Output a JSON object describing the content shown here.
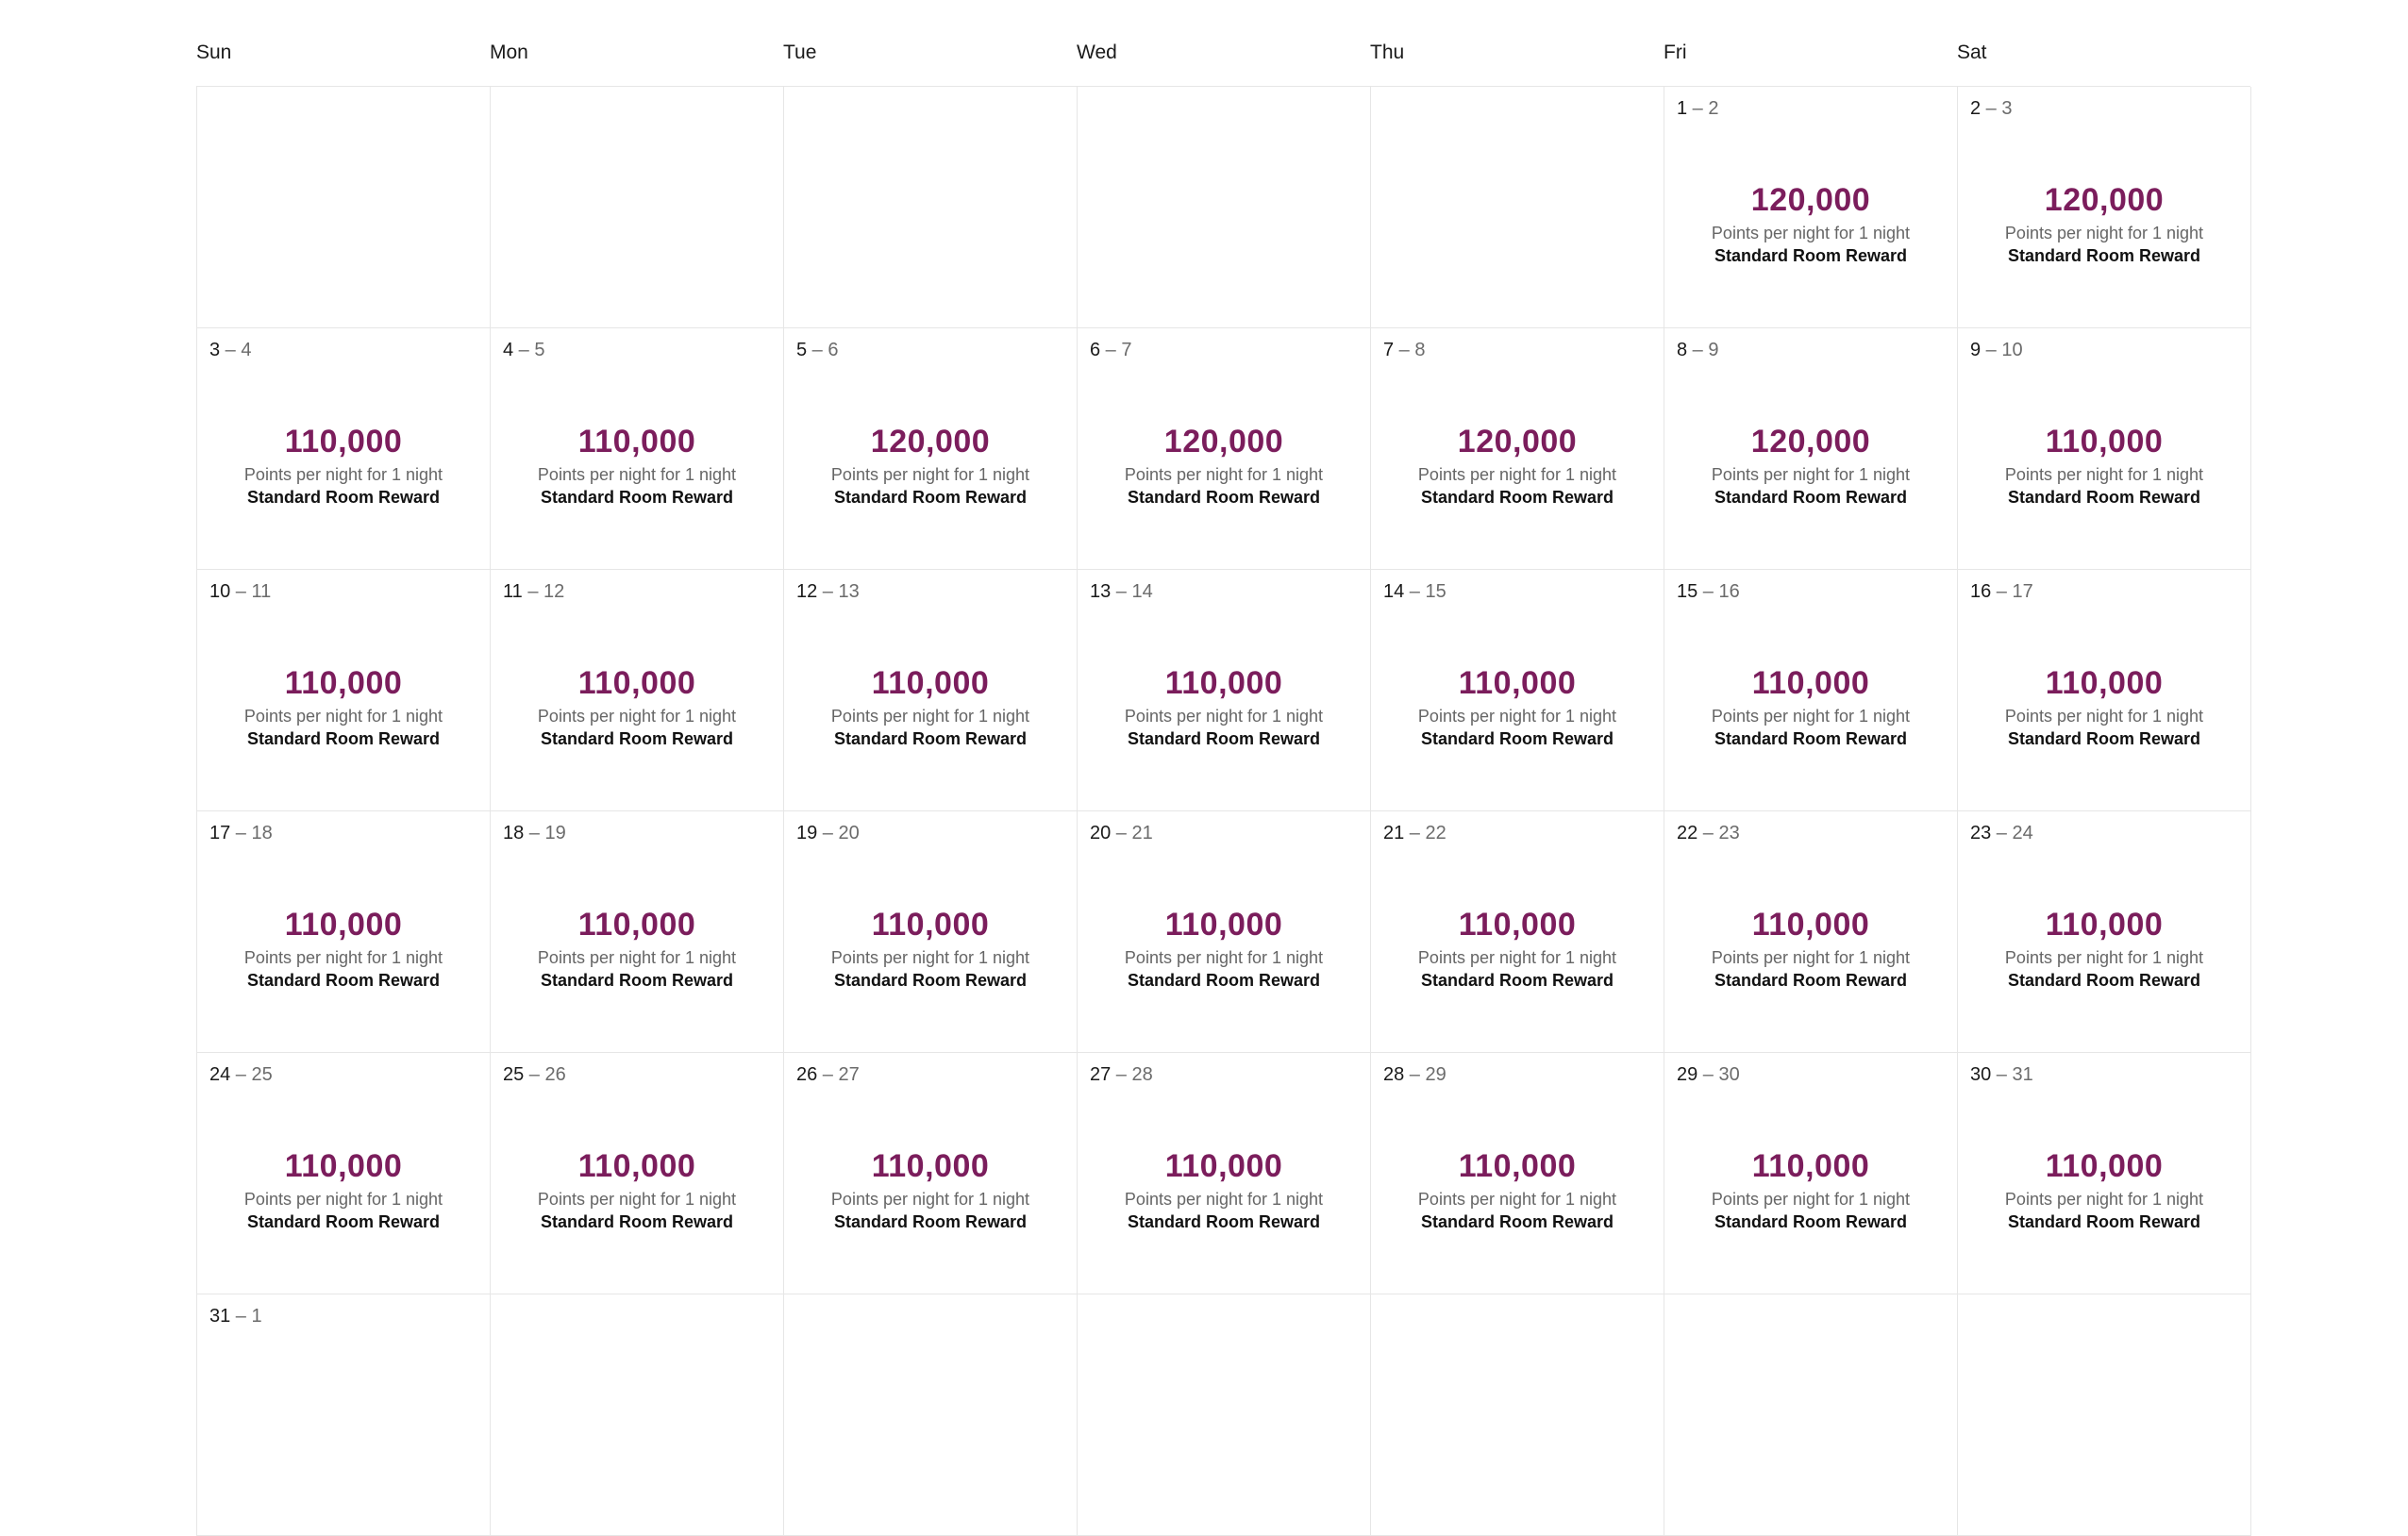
{
  "calendar": {
    "weekdays": [
      "Sun",
      "Mon",
      "Tue",
      "Wed",
      "Thu",
      "Fri",
      "Sat"
    ],
    "caption": "Points per night for 1 night",
    "reward_type": "Standard Room Reward",
    "weeks": [
      [
        null,
        null,
        null,
        null,
        null,
        {
          "start": "1",
          "end": "2",
          "points": "120,000"
        },
        {
          "start": "2",
          "end": "3",
          "points": "120,000"
        }
      ],
      [
        {
          "start": "3",
          "end": "4",
          "points": "110,000"
        },
        {
          "start": "4",
          "end": "5",
          "points": "110,000"
        },
        {
          "start": "5",
          "end": "6",
          "points": "120,000"
        },
        {
          "start": "6",
          "end": "7",
          "points": "120,000"
        },
        {
          "start": "7",
          "end": "8",
          "points": "120,000"
        },
        {
          "start": "8",
          "end": "9",
          "points": "120,000"
        },
        {
          "start": "9",
          "end": "10",
          "points": "110,000"
        }
      ],
      [
        {
          "start": "10",
          "end": "11",
          "points": "110,000"
        },
        {
          "start": "11",
          "end": "12",
          "points": "110,000"
        },
        {
          "start": "12",
          "end": "13",
          "points": "110,000"
        },
        {
          "start": "13",
          "end": "14",
          "points": "110,000"
        },
        {
          "start": "14",
          "end": "15",
          "points": "110,000"
        },
        {
          "start": "15",
          "end": "16",
          "points": "110,000"
        },
        {
          "start": "16",
          "end": "17",
          "points": "110,000"
        }
      ],
      [
        {
          "start": "17",
          "end": "18",
          "points": "110,000"
        },
        {
          "start": "18",
          "end": "19",
          "points": "110,000"
        },
        {
          "start": "19",
          "end": "20",
          "points": "110,000"
        },
        {
          "start": "20",
          "end": "21",
          "points": "110,000"
        },
        {
          "start": "21",
          "end": "22",
          "points": "110,000"
        },
        {
          "start": "22",
          "end": "23",
          "points": "110,000"
        },
        {
          "start": "23",
          "end": "24",
          "points": "110,000"
        }
      ],
      [
        {
          "start": "24",
          "end": "25",
          "points": "110,000"
        },
        {
          "start": "25",
          "end": "26",
          "points": "110,000"
        },
        {
          "start": "26",
          "end": "27",
          "points": "110,000"
        },
        {
          "start": "27",
          "end": "28",
          "points": "110,000"
        },
        {
          "start": "28",
          "end": "29",
          "points": "110,000"
        },
        {
          "start": "29",
          "end": "30",
          "points": "110,000"
        },
        {
          "start": "30",
          "end": "31",
          "points": "110,000"
        }
      ],
      [
        {
          "start": "31",
          "end": "1",
          "points": ""
        },
        null,
        null,
        null,
        null,
        null,
        null
      ]
    ],
    "colors": {
      "points": "#7b1d5c",
      "grid_border": "#e6e6e6"
    }
  }
}
